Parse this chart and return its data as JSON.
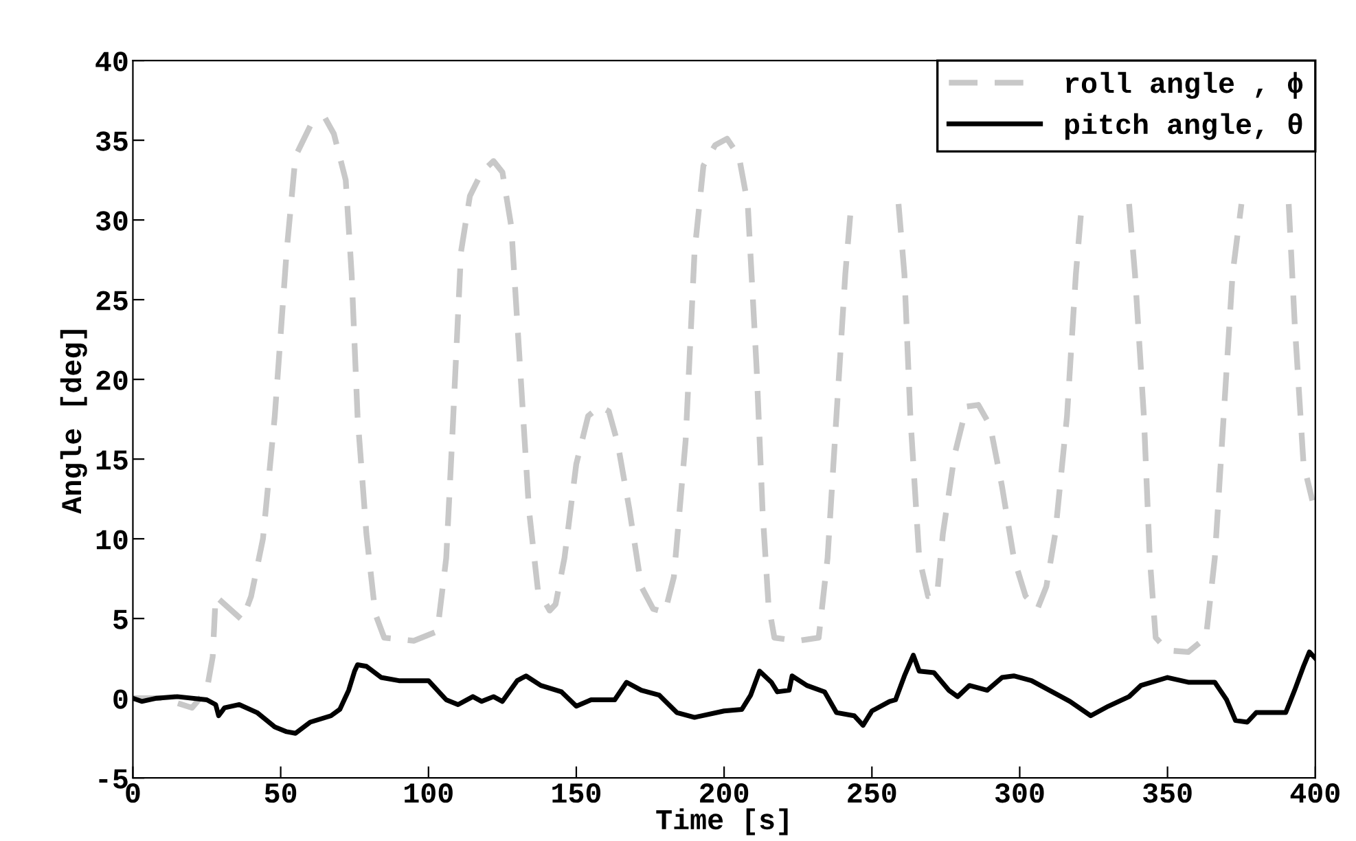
{
  "chart_data": {
    "type": "line",
    "xlabel": "Time [s]",
    "ylabel": "Angle [deg]",
    "xlim": [
      0,
      400
    ],
    "xticks": [
      0,
      50,
      100,
      150,
      200,
      250,
      300,
      350,
      400
    ],
    "ylim": [
      -5,
      40
    ],
    "yticks": [
      -5,
      0,
      5,
      10,
      15,
      20,
      25,
      30,
      35,
      40
    ],
    "grid": false,
    "legend": "top right",
    "series": [
      {
        "name": "roll angle , ϕ",
        "color": "#c8c8c8",
        "line_style": "dashed",
        "x": [
          0,
          10,
          20,
          25,
          27,
          28,
          31,
          37,
          40,
          44,
          48,
          52,
          55,
          60,
          65,
          68,
          72,
          74,
          76,
          79,
          82,
          85,
          95,
          103,
          106,
          108,
          111,
          114,
          118,
          122,
          125,
          128,
          131,
          134,
          137,
          141,
          143,
          146,
          150,
          154,
          158,
          161,
          164,
          168,
          172,
          176,
          180,
          183,
          187,
          190,
          193,
          197,
          201,
          205,
          208,
          211,
          213,
          215,
          217,
          225,
          232,
          235,
          238,
          241,
          243,
          251,
          259,
          261,
          263,
          266,
          269,
          272,
          274,
          278,
          282,
          286,
          290,
          294,
          298,
          302,
          306,
          309,
          312,
          316,
          319,
          321,
          329,
          337,
          339,
          342,
          344,
          346,
          350,
          357,
          363,
          366,
          369,
          372,
          375,
          383,
          391,
          393,
          396,
          399
        ],
        "values": [
          0,
          0,
          -0.6,
          0.5,
          2.6,
          6.4,
          5.9,
          4.9,
          6.4,
          10,
          17.7,
          28,
          34,
          35.9,
          36.4,
          35.4,
          32.5,
          26.6,
          17.7,
          10.3,
          5.3,
          3.8,
          3.6,
          4.2,
          8.8,
          16.2,
          28,
          31.5,
          33,
          33.7,
          33,
          29.6,
          20.7,
          11.8,
          6.8,
          5.5,
          5.9,
          8.8,
          14.7,
          17.7,
          18.3,
          18,
          16,
          11.8,
          7,
          5.6,
          5.4,
          7.6,
          16.2,
          28,
          33.4,
          34.7,
          35.1,
          34,
          31,
          20.7,
          11.8,
          5.9,
          3.8,
          3.6,
          3.8,
          8.8,
          17.7,
          26.6,
          31,
          null,
          31,
          26.6,
          17.7,
          8.8,
          6.4,
          6.4,
          10.3,
          15.3,
          18.3,
          18.4,
          17.1,
          13.3,
          8.8,
          6.4,
          5.6,
          7,
          10.3,
          17.7,
          26.6,
          31,
          null,
          31,
          26.6,
          17.7,
          8.8,
          3.8,
          3,
          2.9,
          3.8,
          8.8,
          17.7,
          26.6,
          31,
          null,
          31,
          23.6,
          14.7,
          12.4
        ]
      },
      {
        "name": "pitch angle, θ",
        "color": "#000000",
        "line_style": "solid",
        "x": [
          0,
          3,
          8,
          15,
          25,
          28,
          29,
          31,
          36,
          42,
          48,
          52,
          55,
          60,
          67,
          70,
          73,
          75,
          76,
          79,
          84,
          90,
          100,
          106,
          110,
          115,
          118,
          122,
          125,
          130,
          133,
          138,
          145,
          150,
          155,
          163,
          167,
          172,
          178,
          184,
          190,
          200,
          206,
          209,
          212,
          216,
          218,
          222,
          223,
          228,
          234,
          238,
          244,
          247,
          250,
          256,
          258,
          261,
          264,
          266,
          271,
          276,
          279,
          283,
          289,
          294,
          298,
          304,
          311,
          317,
          324,
          330,
          337,
          341,
          350,
          357,
          366,
          370,
          373,
          377,
          380,
          390,
          393,
          396,
          398,
          400
        ],
        "values": [
          0,
          -0.2,
          0,
          0.1,
          -0.1,
          -0.4,
          -1.1,
          -0.6,
          -0.4,
          -0.9,
          -1.8,
          -2.1,
          -2.2,
          -1.5,
          -1.1,
          -0.7,
          0.5,
          1.7,
          2.1,
          2,
          1.3,
          1.1,
          1.1,
          -0.1,
          -0.4,
          0.1,
          -0.2,
          0.1,
          -0.2,
          1.1,
          1.4,
          0.8,
          0.4,
          -0.5,
          -0.1,
          -0.1,
          1,
          0.5,
          0.2,
          -0.9,
          -1.2,
          -0.8,
          -0.7,
          0.2,
          1.7,
          1,
          0.4,
          0.5,
          1.4,
          0.8,
          0.4,
          -0.9,
          -1.1,
          -1.7,
          -0.8,
          -0.2,
          -0.1,
          1.4,
          2.7,
          1.7,
          1.6,
          0.5,
          0.1,
          0.8,
          0.5,
          1.3,
          1.4,
          1.1,
          0.4,
          -0.2,
          -1.1,
          -0.5,
          0.1,
          0.8,
          1.3,
          1,
          1,
          -0.1,
          -1.4,
          -1.5,
          -0.9,
          -0.9,
          0.5,
          2,
          2.9,
          2.5
        ]
      }
    ]
  }
}
